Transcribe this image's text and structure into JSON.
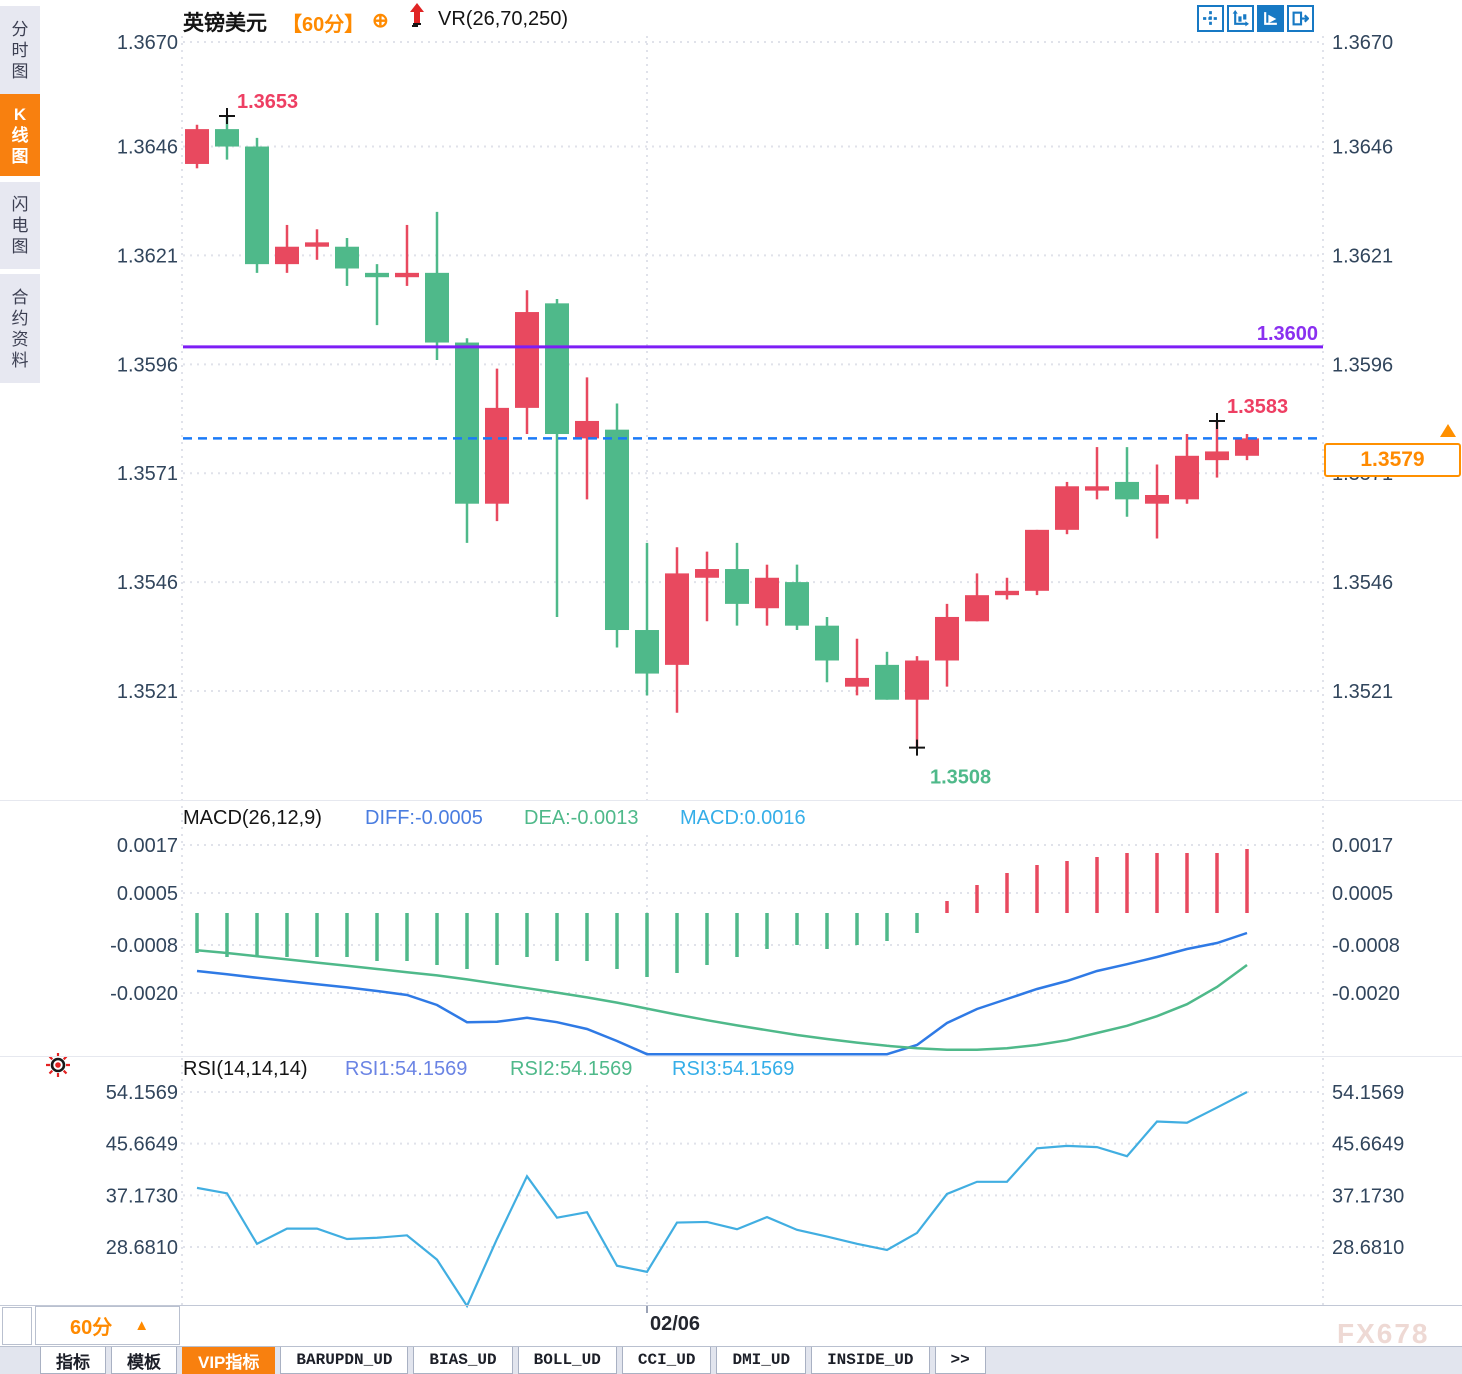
{
  "sidebar": {
    "tabs": [
      {
        "label": "分时图",
        "active": false
      },
      {
        "label": "K线图",
        "active": true
      },
      {
        "label": "闪电图",
        "active": false
      },
      {
        "label": "合约资料",
        "active": false
      }
    ]
  },
  "header": {
    "symbol": "英镑美元",
    "period": "【60分】",
    "add_icon": "⊕",
    "indicator": "VR(26,70,250)"
  },
  "toolbar": {
    "icons": [
      "crosshair-move-icon",
      "axis-scale-icon",
      "play-scale-icon",
      "collapse-right-icon"
    ],
    "active_index": 2
  },
  "colors": {
    "up": "#e8495f",
    "down": "#4fb98a",
    "orange": "#ff8a00",
    "purple_line": "#7d1ef5",
    "dashed_blue": "#1a7af8",
    "diff_line": "#2f7ae5",
    "dea_line": "#4fb98a",
    "rsi_line": "#41aee1",
    "axis_text": "#31455c"
  },
  "chart_data": [
    {
      "type": "candlestick",
      "panel": "main",
      "title": "英镑美元 60分 K线图",
      "y_ticks": [
        "1.3670",
        "1.3646",
        "1.3621",
        "1.3596",
        "1.3571",
        "1.3546",
        "1.3521"
      ],
      "ylim": [
        1.3505,
        1.3673
      ],
      "grid": true,
      "date_label": "02/06",
      "date_divider_index": 15,
      "last_price": "1.3579",
      "hlines": [
        {
          "value": 1.36,
          "label": "1.3600",
          "style": "solid",
          "color": "#7d1ef5"
        },
        {
          "value": 1.3579,
          "label": "1.3579",
          "style": "dashed",
          "color": "#1a7af8"
        }
      ],
      "annotations": [
        {
          "text": "1.3653",
          "price": 1.3653,
          "candle_index": 1,
          "color": "#ee3f63",
          "placement": "above"
        },
        {
          "text": "1.3508",
          "price": 1.3508,
          "candle_index": 24,
          "color": "#4fb98a",
          "placement": "below"
        },
        {
          "text": "1.3583",
          "price": 1.3583,
          "candle_index": 34,
          "color": "#ee3f63",
          "placement": "above"
        }
      ],
      "candles_format": [
        "open",
        "high",
        "low",
        "close"
      ],
      "candles": [
        [
          1.3642,
          1.3651,
          1.3641,
          1.365
        ],
        [
          1.365,
          1.3653,
          1.3643,
          1.3646
        ],
        [
          1.3646,
          1.3648,
          1.3617,
          1.3619
        ],
        [
          1.3619,
          1.3628,
          1.3617,
          1.3623
        ],
        [
          1.3623,
          1.3627,
          1.362,
          1.3624
        ],
        [
          1.3623,
          1.3625,
          1.3614,
          1.3618
        ],
        [
          1.3617,
          1.3619,
          1.3605,
          1.3616
        ],
        [
          1.3616,
          1.3628,
          1.3614,
          1.3617
        ],
        [
          1.3617,
          1.3631,
          1.3597,
          1.3601
        ],
        [
          1.3601,
          1.3602,
          1.3555,
          1.3564
        ],
        [
          1.3564,
          1.3595,
          1.356,
          1.3586
        ],
        [
          1.3586,
          1.3613,
          1.358,
          1.3608
        ],
        [
          1.361,
          1.3611,
          1.3538,
          1.358
        ],
        [
          1.3579,
          1.3593,
          1.3565,
          1.3583
        ],
        [
          1.3581,
          1.3587,
          1.3531,
          1.3535
        ],
        [
          1.3535,
          1.3555,
          1.352,
          1.3525
        ],
        [
          1.3527,
          1.3554,
          1.3516,
          1.3548
        ],
        [
          1.3547,
          1.3553,
          1.3537,
          1.3549
        ],
        [
          1.3549,
          1.3555,
          1.3536,
          1.3541
        ],
        [
          1.354,
          1.355,
          1.3536,
          1.3547
        ],
        [
          1.3546,
          1.355,
          1.3535,
          1.3536
        ],
        [
          1.3536,
          1.3538,
          1.3523,
          1.3528
        ],
        [
          1.3522,
          1.3533,
          1.352,
          1.3524
        ],
        [
          1.3527,
          1.353,
          1.3519,
          1.3519
        ],
        [
          1.3519,
          1.3529,
          1.3508,
          1.3528
        ],
        [
          1.3528,
          1.3541,
          1.3522,
          1.3538
        ],
        [
          1.3537,
          1.3548,
          1.3537,
          1.3543
        ],
        [
          1.3543,
          1.3547,
          1.3542,
          1.3544
        ],
        [
          1.3544,
          1.3558,
          1.3543,
          1.3558
        ],
        [
          1.3558,
          1.3569,
          1.3557,
          1.3568
        ],
        [
          1.3567,
          1.3577,
          1.3565,
          1.3568
        ],
        [
          1.3569,
          1.3577,
          1.3561,
          1.3565
        ],
        [
          1.3564,
          1.3573,
          1.3556,
          1.3566
        ],
        [
          1.3565,
          1.358,
          1.3564,
          1.3575
        ],
        [
          1.3574,
          1.3583,
          1.357,
          1.3576
        ],
        [
          1.3575,
          1.358,
          1.3574,
          1.3579
        ]
      ]
    },
    {
      "type": "macd",
      "panel": "indicator1",
      "title": "MACD(26,12,9)",
      "diff_label": "DIFF:-0.0005",
      "dea_label": "DEA:-0.0013",
      "macd_label": "MACD:0.0016",
      "y_ticks": [
        "0.0017",
        "0.0005",
        "-0.0008",
        "-0.0020"
      ],
      "tick_values": [
        0.0017,
        0.0005,
        -0.0008,
        -0.002
      ],
      "hist": [
        -0.001,
        -0.0011,
        -0.0011,
        -0.0011,
        -0.0011,
        -0.0011,
        -0.0012,
        -0.0012,
        -0.0013,
        -0.0014,
        -0.0013,
        -0.0011,
        -0.0012,
        -0.0012,
        -0.0014,
        -0.0016,
        -0.0015,
        -0.0013,
        -0.0011,
        -0.0009,
        -0.0008,
        -0.0009,
        -0.0008,
        -0.0007,
        -0.0005,
        0.0003,
        0.0007,
        0.001,
        0.0012,
        0.0013,
        0.0014,
        0.0015,
        0.0015,
        0.0015,
        0.0015,
        0.0016
      ],
      "diff": [
        -0.00145,
        -0.00153,
        -0.00162,
        -0.0017,
        -0.00178,
        -0.00186,
        -0.00195,
        -0.00205,
        -0.0023,
        -0.00273,
        -0.00272,
        -0.00262,
        -0.00273,
        -0.0029,
        -0.0032,
        -0.00353,
        -0.00353,
        -0.00353,
        -0.00353,
        -0.00353,
        -0.00353,
        -0.00353,
        -0.00353,
        -0.00353,
        -0.0033,
        -0.00275,
        -0.0024,
        -0.00215,
        -0.0019,
        -0.0017,
        -0.00145,
        -0.00128,
        -0.0011,
        -0.0009,
        -0.00075,
        -0.0005
      ],
      "dea": [
        -0.00093,
        -0.001,
        -0.00108,
        -0.00116,
        -0.00124,
        -0.00132,
        -0.0014,
        -0.00148,
        -0.00156,
        -0.00166,
        -0.00177,
        -0.00188,
        -0.00199,
        -0.00211,
        -0.00224,
        -0.00239,
        -0.00254,
        -0.00268,
        -0.00281,
        -0.00293,
        -0.00305,
        -0.00315,
        -0.00324,
        -0.00332,
        -0.00338,
        -0.00342,
        -0.00342,
        -0.00338,
        -0.0033,
        -0.00318,
        -0.003,
        -0.00282,
        -0.00258,
        -0.00228,
        -0.00185,
        -0.0013
      ]
    },
    {
      "type": "rsi",
      "panel": "indicator2",
      "title": "RSI(14,14,14)",
      "rsi1_label": "RSI1:54.1569",
      "rsi2_label": "RSI2:54.1569",
      "rsi3_label": "RSI3:54.1569",
      "y_ticks": [
        "54.1569",
        "45.6649",
        "37.1730",
        "28.6810"
      ],
      "tick_values": [
        54.1569,
        45.6649,
        37.173,
        28.681
      ],
      "values": [
        38.4,
        37.5,
        29.2,
        31.7,
        31.7,
        30.0,
        30.2,
        30.6,
        26.6,
        19.0,
        30.0,
        40.3,
        33.5,
        34.4,
        25.6,
        24.6,
        32.7,
        32.8,
        31.6,
        33.6,
        31.5,
        30.4,
        29.2,
        28.2,
        31.0,
        37.4,
        39.4,
        39.4,
        44.9,
        45.3,
        45.1,
        43.6,
        49.3,
        49.1,
        51.6,
        54.1569
      ]
    }
  ],
  "footer": {
    "period_label": "60分",
    "period_arrow": "▲",
    "date_label": "02/06",
    "watermark": "FX678",
    "tabs": [
      {
        "label": "指标",
        "active": false,
        "mono": false
      },
      {
        "label": "模板",
        "active": false,
        "mono": false
      },
      {
        "label": "VIP指标",
        "active": true,
        "mono": false
      },
      {
        "label": "BARUPDN_UD",
        "active": false,
        "mono": true
      },
      {
        "label": "BIAS_UD",
        "active": false,
        "mono": true
      },
      {
        "label": "BOLL_UD",
        "active": false,
        "mono": true
      },
      {
        "label": "CCI_UD",
        "active": false,
        "mono": true
      },
      {
        "label": "DMI_UD",
        "active": false,
        "mono": true
      },
      {
        "label": "INSIDE_UD",
        "active": false,
        "mono": true
      },
      {
        "label": ">>",
        "active": false,
        "mono": true
      }
    ]
  }
}
